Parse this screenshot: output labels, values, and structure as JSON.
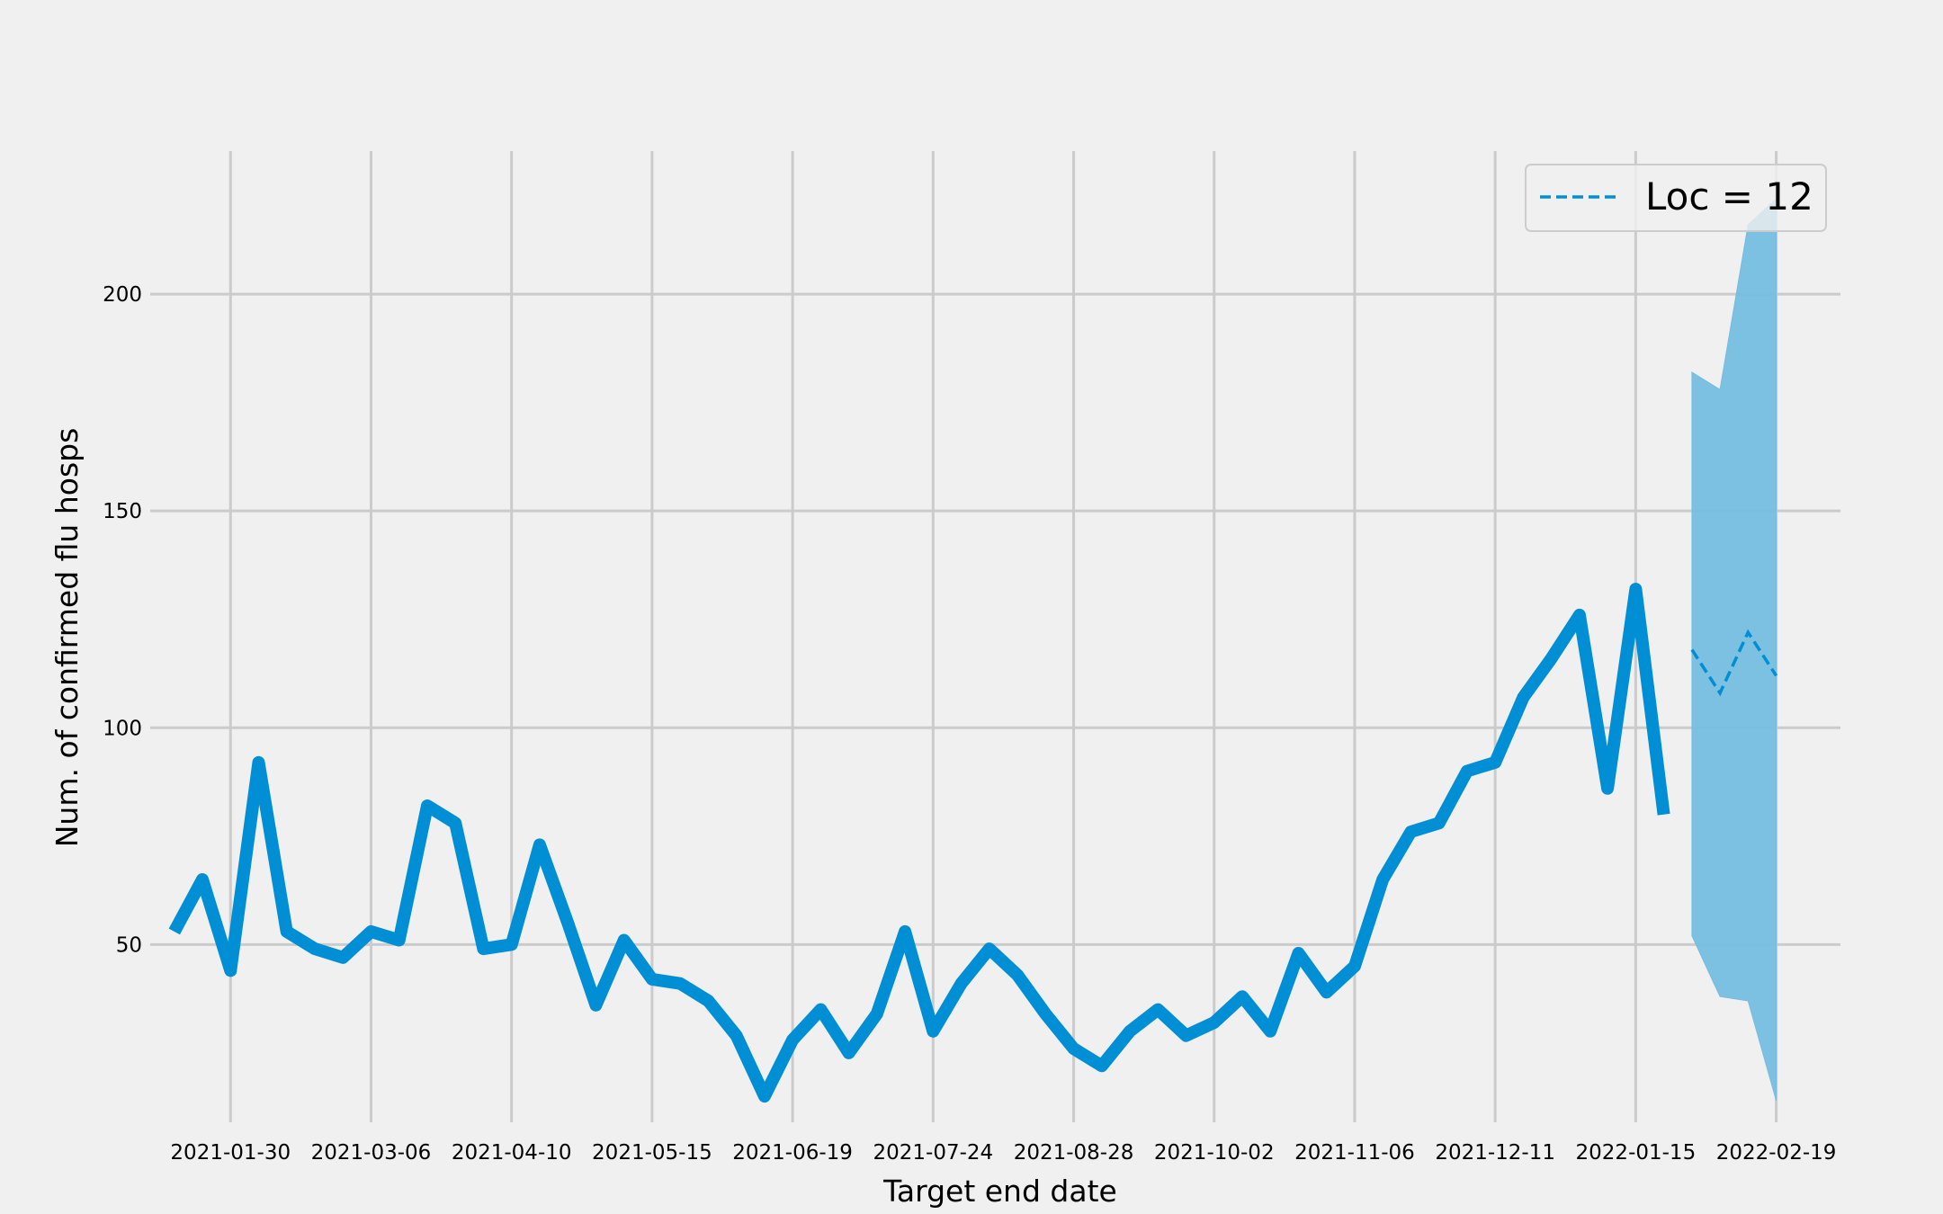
{
  "chart_data": {
    "type": "line",
    "title": "",
    "xlabel": "Target end date",
    "ylabel": "Num. of confirmed flu hosps",
    "x_tick_labels": [
      "2021-01-30",
      "2021-03-06",
      "2021-04-10",
      "2021-05-15",
      "2021-06-19",
      "2021-07-24",
      "2021-08-28",
      "2021-10-02",
      "2021-11-06",
      "2021-12-11",
      "2022-01-15",
      "2022-02-19"
    ],
    "y_ticks": [
      50,
      100,
      150,
      200
    ],
    "ylim": [
      9,
      233
    ],
    "xlim": [
      "2021-01-10",
      "2022-03-07"
    ],
    "grid": true,
    "legend_position": "top-right",
    "series": [
      {
        "style": "solid",
        "color": "#008fd5",
        "x": [
          "2021-01-16",
          "2021-01-23",
          "2021-01-30",
          "2021-02-06",
          "2021-02-13",
          "2021-02-20",
          "2021-02-27",
          "2021-03-06",
          "2021-03-13",
          "2021-03-20",
          "2021-03-27",
          "2021-04-03",
          "2021-04-10",
          "2021-04-17",
          "2021-04-24",
          "2021-05-01",
          "2021-05-08",
          "2021-05-15",
          "2021-05-22",
          "2021-05-29",
          "2021-06-05",
          "2021-06-12",
          "2021-06-19",
          "2021-06-26",
          "2021-07-03",
          "2021-07-10",
          "2021-07-17",
          "2021-07-24",
          "2021-07-31",
          "2021-08-07",
          "2021-08-14",
          "2021-08-21",
          "2021-08-28",
          "2021-09-04",
          "2021-09-11",
          "2021-09-18",
          "2021-09-25",
          "2021-10-02",
          "2021-10-09",
          "2021-10-16",
          "2021-10-23",
          "2021-10-30",
          "2021-11-06",
          "2021-11-13",
          "2021-11-20",
          "2021-11-27",
          "2021-12-04",
          "2021-12-11",
          "2021-12-18",
          "2021-12-25",
          "2022-01-01",
          "2022-01-08",
          "2022-01-15",
          "2022-01-22"
        ],
        "values": [
          53,
          65,
          44,
          92,
          53,
          49,
          47,
          53,
          51,
          82,
          78,
          49,
          50,
          73,
          55,
          36,
          51,
          42,
          41,
          37,
          29,
          15,
          28,
          35,
          25,
          34,
          53,
          30,
          41,
          49,
          43,
          34,
          26,
          22,
          30,
          35,
          29,
          32,
          38,
          30,
          48,
          39,
          45,
          65,
          76,
          78,
          90,
          92,
          107,
          116,
          126,
          86,
          132,
          80
        ]
      },
      {
        "name": "Loc = 12",
        "style": "dashed",
        "color": "#008fd5",
        "x": [
          "2022-01-29",
          "2022-02-05",
          "2022-02-12",
          "2022-02-19"
        ],
        "values": [
          118,
          108,
          122,
          112
        ],
        "band_upper": [
          182,
          178,
          216,
          222
        ],
        "band_lower": [
          52,
          38,
          37,
          14
        ],
        "band_color": "#75bde0"
      }
    ]
  }
}
